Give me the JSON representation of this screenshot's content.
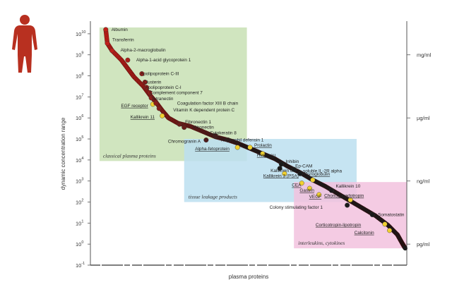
{
  "chart_data": {
    "type": "scatter",
    "title": "",
    "xlabel": "plasma proteins",
    "ylabel": "dynamic concentration range",
    "y_scale": "log",
    "ylim": [
      -1,
      10.5
    ],
    "y_ticks": [
      {
        "exp": 10,
        "label": "10",
        "sup": "10"
      },
      {
        "exp": 9,
        "label": "10",
        "sup": "9"
      },
      {
        "exp": 8,
        "label": "10",
        "sup": "8"
      },
      {
        "exp": 7,
        "label": "10",
        "sup": "7"
      },
      {
        "exp": 6,
        "label": "10",
        "sup": "6"
      },
      {
        "exp": 5,
        "label": "10",
        "sup": "5"
      },
      {
        "exp": 4,
        "label": "10",
        "sup": "4"
      },
      {
        "exp": 3,
        "label": "10",
        "sup": "3"
      },
      {
        "exp": 2,
        "label": "10",
        "sup": "2"
      },
      {
        "exp": 1,
        "label": "10",
        "sup": "1"
      },
      {
        "exp": 0,
        "label": "10",
        "sup": "0"
      },
      {
        "exp": -1,
        "label": "10",
        "sup": "-1"
      }
    ],
    "right_axis": [
      {
        "exp": 9,
        "label": "mg/ml"
      },
      {
        "exp": 6,
        "label": "µg/ml"
      },
      {
        "exp": 3,
        "label": "ng/ml"
      },
      {
        "exp": 0,
        "label": "pg/ml"
      }
    ],
    "regions": [
      {
        "name": "classical plasma proteins",
        "color": "#c8e0b4",
        "x_range": [
          0.02,
          0.49
        ],
        "y_range": [
          3.95,
          10.3
        ]
      },
      {
        "name": "tissue leakage products",
        "color": "#bcdff0",
        "x_range": [
          0.29,
          0.84
        ],
        "y_range": [
          2.0,
          5.0
        ]
      },
      {
        "name": "interleukins, cytokines",
        "color": "#f2c2de",
        "x_range": [
          0.64,
          1.0
        ],
        "y_range": [
          -0.2,
          2.95
        ]
      }
    ],
    "curve_points": [
      [
        0.04,
        10.2
      ],
      [
        0.045,
        9.55
      ],
      [
        0.06,
        9.2
      ],
      [
        0.09,
        8.75
      ],
      [
        0.11,
        8.35
      ],
      [
        0.13,
        7.95
      ],
      [
        0.16,
        7.5
      ],
      [
        0.18,
        7.1
      ],
      [
        0.2,
        6.75
      ],
      [
        0.22,
        6.35
      ],
      [
        0.24,
        6.0
      ],
      [
        0.27,
        5.75
      ],
      [
        0.31,
        5.6
      ],
      [
        0.35,
        5.35
      ],
      [
        0.39,
        5.1
      ],
      [
        0.43,
        4.95
      ],
      [
        0.46,
        4.8
      ],
      [
        0.5,
        4.55
      ],
      [
        0.54,
        4.3
      ],
      [
        0.58,
        4.05
      ],
      [
        0.62,
        3.7
      ],
      [
        0.66,
        3.4
      ],
      [
        0.7,
        3.05
      ],
      [
        0.74,
        2.75
      ],
      [
        0.78,
        2.4
      ],
      [
        0.82,
        2.05
      ],
      [
        0.86,
        1.7
      ],
      [
        0.9,
        1.35
      ],
      [
        0.94,
        0.9
      ],
      [
        0.97,
        0.45
      ],
      [
        0.985,
        0.05
      ],
      [
        0.995,
        -0.2
      ]
    ],
    "points": [
      {
        "name": "Albumin",
        "x": 0.04,
        "y": 10.2,
        "underline": false,
        "highlight": false
      },
      {
        "name": "Transferrin",
        "x": 0.045,
        "y": 9.55,
        "underline": false,
        "highlight": false
      },
      {
        "name": "Alpha-2-macroglobulin",
        "x": 0.06,
        "y": 9.2,
        "underline": false,
        "highlight": false
      },
      {
        "name": "Alpha-1-acid glycoprotein 1",
        "x": 0.11,
        "y": 8.75,
        "underline": false,
        "highlight": false
      },
      {
        "name": "Apolipoprotein C-III",
        "x": 0.155,
        "y": 8.1,
        "underline": false,
        "highlight": false
      },
      {
        "name": "Clusterin",
        "x": 0.165,
        "y": 7.7,
        "underline": false,
        "highlight": false
      },
      {
        "name": "Apolipoprotein C-I",
        "x": 0.17,
        "y": 7.45,
        "underline": false,
        "highlight": false
      },
      {
        "name": "Complement component 7",
        "x": 0.18,
        "y": 7.2,
        "underline": false,
        "highlight": false
      },
      {
        "name": "Tetranectin",
        "x": 0.185,
        "y": 6.95,
        "underline": false,
        "highlight": false
      },
      {
        "name": "EGF receptor",
        "x": 0.19,
        "y": 6.65,
        "underline": true,
        "highlight": true
      },
      {
        "name": "Coagulation factor XIII B chain",
        "x": 0.2,
        "y": 6.7,
        "underline": false,
        "highlight": false
      },
      {
        "name": "Vitamin K dependent protein C",
        "x": 0.21,
        "y": 6.45,
        "underline": false,
        "highlight": false
      },
      {
        "name": "Kallikrein 11",
        "x": 0.22,
        "y": 6.1,
        "underline": true,
        "highlight": true
      },
      {
        "name": "Fibronectin 1",
        "x": 0.275,
        "y": 5.7,
        "underline": false,
        "highlight": false
      },
      {
        "name": "Vitronectin",
        "x": 0.29,
        "y": 5.55,
        "underline": false,
        "highlight": false
      },
      {
        "name": "Cytokeratin 8",
        "x": 0.39,
        "y": 5.15,
        "underline": false,
        "highlight": false
      },
      {
        "name": "Chromogranin A",
        "x": 0.36,
        "y": 4.95,
        "underline": false,
        "highlight": false
      },
      {
        "name": "Neutrophil defensin 1",
        "x": 0.43,
        "y": 4.95,
        "underline": false,
        "highlight": false
      },
      {
        "name": "Alpha-fetoprotein",
        "x": 0.46,
        "y": 4.6,
        "underline": true,
        "highlight": true
      },
      {
        "name": "Prolactin",
        "x": 0.5,
        "y": 4.6,
        "underline": true,
        "highlight": true
      },
      {
        "name": "Her2/neu",
        "x": 0.54,
        "y": 4.3,
        "underline": true,
        "highlight": true
      },
      {
        "name": "Inhibin",
        "x": 0.6,
        "y": 3.8,
        "underline": false,
        "highlight": false
      },
      {
        "name": "Ep-CAM",
        "x": 0.64,
        "y": 3.55,
        "underline": false,
        "highlight": false
      },
      {
        "name": "Kallikrein 6",
        "x": 0.595,
        "y": 3.6,
        "underline": false,
        "highlight": false
      },
      {
        "name": "soluble IL-2R alpha",
        "x": 0.66,
        "y": 3.35,
        "underline": false,
        "highlight": false
      },
      {
        "name": "Kallikrein 3 (PSA)",
        "x": 0.61,
        "y": 3.35,
        "underline": true,
        "highlight": true
      },
      {
        "name": "CEA",
        "x": 0.665,
        "y": 2.9,
        "underline": true,
        "highlight": true
      },
      {
        "name": "Thyroglobulin",
        "x": 0.7,
        "y": 3.05,
        "underline": true,
        "highlight": true
      },
      {
        "name": "Gastrin",
        "x": 0.69,
        "y": 2.65,
        "underline": true,
        "highlight": true
      },
      {
        "name": "Kallikrein 10",
        "x": 0.76,
        "y": 2.55,
        "underline": false,
        "highlight": false
      },
      {
        "name": "VEGF",
        "x": 0.72,
        "y": 2.35,
        "underline": true,
        "highlight": true
      },
      {
        "name": "Choriogonadotropin",
        "x": 0.82,
        "y": 2.1,
        "underline": true,
        "highlight": true
      },
      {
        "name": "Colony stimulating factor 1",
        "x": 0.81,
        "y": 1.85,
        "underline": false,
        "highlight": false
      },
      {
        "name": "Somatostatin",
        "x": 0.89,
        "y": 1.4,
        "underline": false,
        "highlight": false
      },
      {
        "name": "Corticotropin-lipotropin",
        "x": 0.93,
        "y": 0.95,
        "underline": true,
        "highlight": true
      },
      {
        "name": "Calcitonin",
        "x": 0.945,
        "y": 0.65,
        "underline": true,
        "highlight": true
      }
    ],
    "colors": {
      "dot_high": "#c0201a",
      "dot_low": "#1a1a1a",
      "dot_highlight": "#f0d030",
      "axis": "#555555",
      "figure": "#b83020"
    },
    "icon": "human-figure-icon"
  }
}
